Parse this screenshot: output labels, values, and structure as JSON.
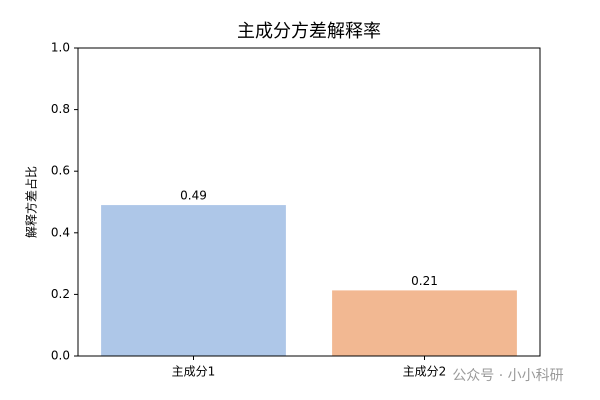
{
  "chart_data": {
    "type": "bar",
    "title": "主成分方差解释率",
    "y_label": "解释方差占比",
    "categories": [
      "主成分1",
      "主成分2"
    ],
    "values": [
      0.49,
      0.213
    ],
    "value_labels": [
      "0.49",
      "0.21"
    ],
    "colors": [
      "#aec7e8",
      "#f2b892"
    ],
    "ylim": [
      0,
      1
    ],
    "yticks": [
      {
        "value": 0,
        "label": "0.0"
      },
      0.2,
      0.4,
      0.6,
      0.8,
      {
        "value": 1,
        "label": "1.0"
      }
    ],
    "watermark": "公众号 · 小小科研"
  }
}
